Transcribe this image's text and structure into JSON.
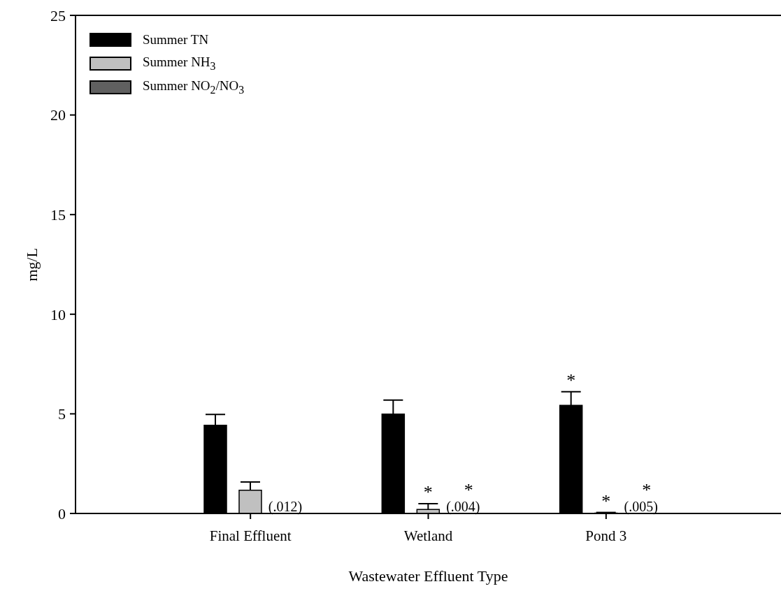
{
  "chart_data": {
    "type": "bar",
    "xlabel": "Wastewater Effluent Type",
    "ylabel": "mg/L",
    "categories": [
      "Final Effluent",
      "Wetland",
      "Pond 3"
    ],
    "series": [
      {
        "name": "Summer TN",
        "color": "#000000",
        "values": [
          4.43,
          4.99,
          5.43
        ],
        "errors": [
          [
            4.43,
            4.97
          ],
          [
            4.99,
            5.69
          ],
          [
            5.43,
            6.11
          ]
        ],
        "value_labels": [
          null,
          null,
          "*"
        ]
      },
      {
        "name": "Summer NH$_{3}$",
        "color": "#c0c0c0",
        "values": [
          1.17,
          0.2,
          0.02
        ],
        "errors": [
          [
            1.17,
            1.58
          ],
          [
            0.2,
            0.49
          ],
          [
            0.02,
            0.05
          ]
        ],
        "value_labels": [
          null,
          "*",
          "*"
        ]
      },
      {
        "name": "Summer NO$_{2}$/NO$_{3}$",
        "color": "#606060",
        "values": [
          0.012,
          0.004,
          0.005
        ],
        "value_labels": [
          "(.012)",
          "(.004)",
          "(.005)"
        ]
      }
    ],
    "annotations": [
      {
        "text": "*",
        "x": "Wetland",
        "y": 0.004
      },
      {
        "text": "*",
        "x": "Pond 3",
        "y": 0.005
      }
    ],
    "ylim": [
      0,
      25
    ],
    "yticks": [
      0,
      5,
      10,
      15,
      20,
      25
    ],
    "legend": "top left",
    "grid": false
  }
}
